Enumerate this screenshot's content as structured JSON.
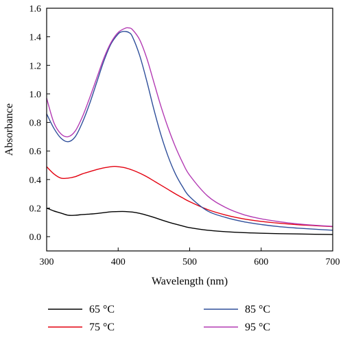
{
  "chart_data": {
    "type": "line",
    "xlabel": "Wavelength (nm)",
    "ylabel": "Absorbance",
    "xlim": [
      300,
      700
    ],
    "ylim": [
      -0.1,
      1.6
    ],
    "xticks": [
      300,
      400,
      500,
      600,
      700
    ],
    "yticks": [
      "0.0",
      "0.2",
      "0.4",
      "0.6",
      "0.8",
      "1.0",
      "1.2",
      "1.4",
      "1.6"
    ],
    "grid": false,
    "legend_position": "bottom, below plot",
    "series": [
      {
        "name": "65 °C",
        "color": "#000000",
        "x": [
          300,
          310,
          320,
          330,
          340,
          350,
          360,
          370,
          380,
          390,
          400,
          410,
          420,
          430,
          440,
          450,
          460,
          470,
          480,
          490,
          500,
          525,
          550,
          575,
          600,
          625,
          650,
          675,
          700
        ],
        "y": [
          0.2,
          0.18,
          0.165,
          0.15,
          0.15,
          0.155,
          0.158,
          0.162,
          0.168,
          0.174,
          0.176,
          0.176,
          0.172,
          0.163,
          0.15,
          0.135,
          0.118,
          0.102,
          0.088,
          0.075,
          0.063,
          0.045,
          0.035,
          0.028,
          0.024,
          0.021,
          0.019,
          0.017,
          0.015
        ]
      },
      {
        "name": "75 °C",
        "color": "#e3000f",
        "x": [
          300,
          310,
          320,
          330,
          340,
          350,
          360,
          370,
          380,
          390,
          395,
          400,
          410,
          420,
          430,
          440,
          450,
          460,
          470,
          480,
          490,
          500,
          525,
          550,
          575,
          600,
          625,
          650,
          675,
          700
        ],
        "y": [
          0.49,
          0.44,
          0.41,
          0.41,
          0.42,
          0.44,
          0.455,
          0.47,
          0.482,
          0.49,
          0.492,
          0.49,
          0.482,
          0.466,
          0.445,
          0.42,
          0.39,
          0.36,
          0.33,
          0.3,
          0.272,
          0.245,
          0.19,
          0.152,
          0.125,
          0.107,
          0.094,
          0.084,
          0.077,
          0.07
        ]
      },
      {
        "name": "85 °C",
        "color": "#2e4e9a",
        "x": [
          300,
          310,
          320,
          330,
          340,
          350,
          360,
          370,
          380,
          390,
          400,
          405,
          410,
          415,
          420,
          430,
          440,
          450,
          460,
          470,
          480,
          490,
          500,
          525,
          550,
          575,
          600,
          625,
          650,
          675,
          700
        ],
        "y": [
          0.86,
          0.76,
          0.69,
          0.665,
          0.7,
          0.8,
          0.93,
          1.08,
          1.23,
          1.35,
          1.42,
          1.435,
          1.437,
          1.43,
          1.4,
          1.27,
          1.09,
          0.89,
          0.71,
          0.56,
          0.44,
          0.35,
          0.28,
          0.18,
          0.135,
          0.105,
          0.085,
          0.07,
          0.06,
          0.052,
          0.045
        ]
      },
      {
        "name": "95 °C",
        "color": "#b33ab3",
        "x": [
          300,
          310,
          320,
          330,
          340,
          350,
          360,
          370,
          380,
          390,
          400,
          410,
          415,
          420,
          430,
          440,
          450,
          460,
          470,
          480,
          490,
          500,
          525,
          550,
          575,
          600,
          625,
          650,
          675,
          700
        ],
        "y": [
          0.97,
          0.8,
          0.72,
          0.7,
          0.74,
          0.84,
          0.97,
          1.11,
          1.25,
          1.36,
          1.43,
          1.46,
          1.462,
          1.45,
          1.38,
          1.25,
          1.08,
          0.91,
          0.76,
          0.63,
          0.52,
          0.43,
          0.285,
          0.205,
          0.155,
          0.125,
          0.105,
          0.09,
          0.08,
          0.072
        ]
      }
    ]
  }
}
